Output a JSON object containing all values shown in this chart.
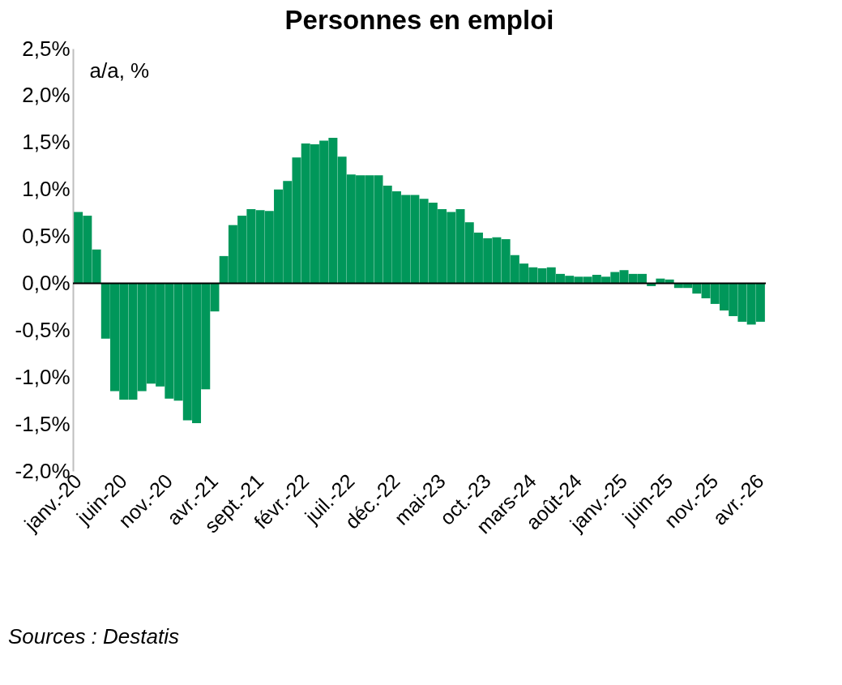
{
  "chart_data": {
    "type": "bar",
    "title": "Personnes en emploi",
    "ylabel": "a/a, %",
    "annotations": [
      "Sources : Destatis"
    ],
    "categories": [
      "janv.-20",
      null,
      null,
      null,
      null,
      "juin-20",
      null,
      null,
      null,
      null,
      "nov.-20",
      null,
      null,
      null,
      null,
      "avr.-21",
      null,
      null,
      null,
      null,
      "sept.-21",
      null,
      null,
      null,
      null,
      "févr.-22",
      null,
      null,
      null,
      null,
      "juil.-22",
      null,
      null,
      null,
      null,
      "déc.-22",
      null,
      null,
      null,
      null,
      "mai-23",
      null,
      null,
      null,
      null,
      "oct.-23",
      null,
      null,
      null,
      null,
      "mars-24",
      null,
      null,
      null,
      null,
      "août-24",
      null,
      null,
      null,
      null,
      "janv.-25",
      null,
      null,
      null,
      null,
      "juin-25",
      null,
      null,
      null,
      null,
      "nov.-25",
      null,
      null,
      null,
      null,
      "avr.-26"
    ],
    "values": [
      0.76,
      0.72,
      0.36,
      -0.59,
      -1.15,
      -1.24,
      -1.24,
      -1.15,
      -1.07,
      -1.1,
      -1.23,
      -1.25,
      -1.46,
      -1.49,
      -1.13,
      -0.3,
      0.29,
      0.62,
      0.72,
      0.79,
      0.78,
      0.77,
      1.0,
      1.09,
      1.34,
      1.49,
      1.48,
      1.52,
      1.55,
      1.35,
      1.16,
      1.15,
      1.15,
      1.15,
      1.04,
      0.98,
      0.94,
      0.94,
      0.9,
      0.86,
      0.79,
      0.76,
      0.79,
      0.65,
      0.54,
      0.48,
      0.49,
      0.47,
      0.3,
      0.21,
      0.17,
      0.16,
      0.17,
      0.1,
      0.08,
      0.07,
      0.07,
      0.09,
      0.07,
      0.12,
      0.14,
      0.1,
      0.1,
      -0.03,
      0.05,
      0.04,
      -0.05,
      -0.05,
      -0.11,
      -0.16,
      -0.22,
      -0.29,
      -0.35,
      -0.41,
      -0.44,
      -0.41
    ],
    "color": "#00975a",
    "ylim": [
      -2.0,
      2.5
    ],
    "yticks": [
      {
        "value": -2.0,
        "label": "-2,0%"
      },
      {
        "value": -1.5,
        "label": "-1,5%"
      },
      {
        "value": -1.0,
        "label": "-1,0%"
      },
      {
        "value": -0.5,
        "label": "-0,5%"
      },
      {
        "value": 0.0,
        "label": "0,0%"
      },
      {
        "value": 0.5,
        "label": "0,5%"
      },
      {
        "value": 1.0,
        "label": "1,0%"
      },
      {
        "value": 1.5,
        "label": "1,5%"
      },
      {
        "value": 2.0,
        "label": "2,0%"
      },
      {
        "value": 2.5,
        "label": "2,5%"
      }
    ],
    "ref_lines": [
      {
        "axis": "y",
        "value": 0,
        "color": "#000000"
      }
    ],
    "grid": false
  }
}
